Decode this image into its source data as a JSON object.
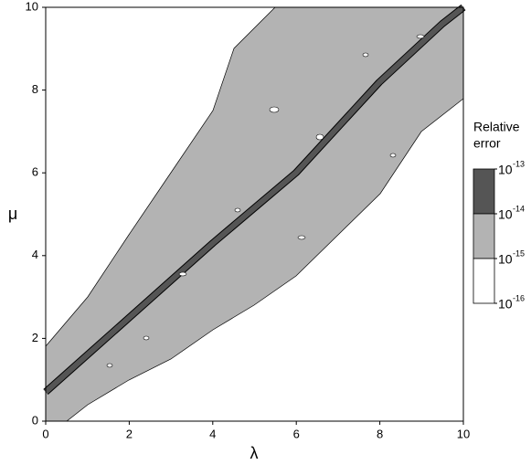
{
  "chart_data": {
    "type": "contour",
    "x_label": "λ",
    "y_label": "μ",
    "xlim": [
      0,
      10
    ],
    "ylim": [
      0,
      10
    ],
    "xticks": [
      0,
      2,
      4,
      6,
      8,
      10
    ],
    "yticks": [
      0,
      2,
      4,
      6,
      8,
      10
    ],
    "colorbar": {
      "title": [
        "Relative",
        "error"
      ],
      "scale": "log",
      "lim": [
        1e-16,
        1e-13
      ],
      "ticks": [
        {
          "value": 1e-13,
          "label": "10",
          "exponent": "-13"
        },
        {
          "value": 1e-14,
          "label": "10",
          "exponent": "-14"
        },
        {
          "value": 1e-15,
          "label": "10",
          "exponent": "-15"
        },
        {
          "value": 1e-16,
          "label": "10",
          "exponent": "-16"
        }
      ],
      "colors": [
        "#555555",
        "#b3b3b3",
        "#ffffff"
      ]
    }
  }
}
